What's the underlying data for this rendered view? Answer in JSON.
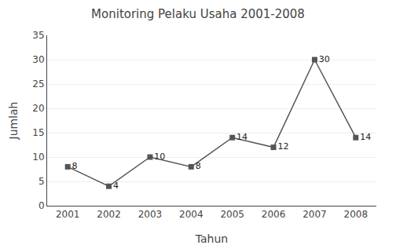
{
  "chart_data": {
    "type": "line",
    "title": "Monitoring Pelaku Usaha 2001-2008",
    "xlabel": "Tahun",
    "ylabel": "Jumlah",
    "x": [
      2001,
      2002,
      2003,
      2004,
      2005,
      2006,
      2007,
      2008
    ],
    "values": [
      8,
      4,
      10,
      8,
      14,
      12,
      30,
      14
    ],
    "color": "#555555",
    "marker": "square",
    "xlim": [
      2000.5,
      2008.5
    ],
    "xticks": [
      2001,
      2002,
      2003,
      2004,
      2005,
      2006,
      2007,
      2008
    ],
    "ylim": [
      0,
      35
    ],
    "yticks": [
      0,
      5,
      10,
      15,
      20,
      25,
      30,
      35
    ],
    "grid": true,
    "data_labels": true
  }
}
